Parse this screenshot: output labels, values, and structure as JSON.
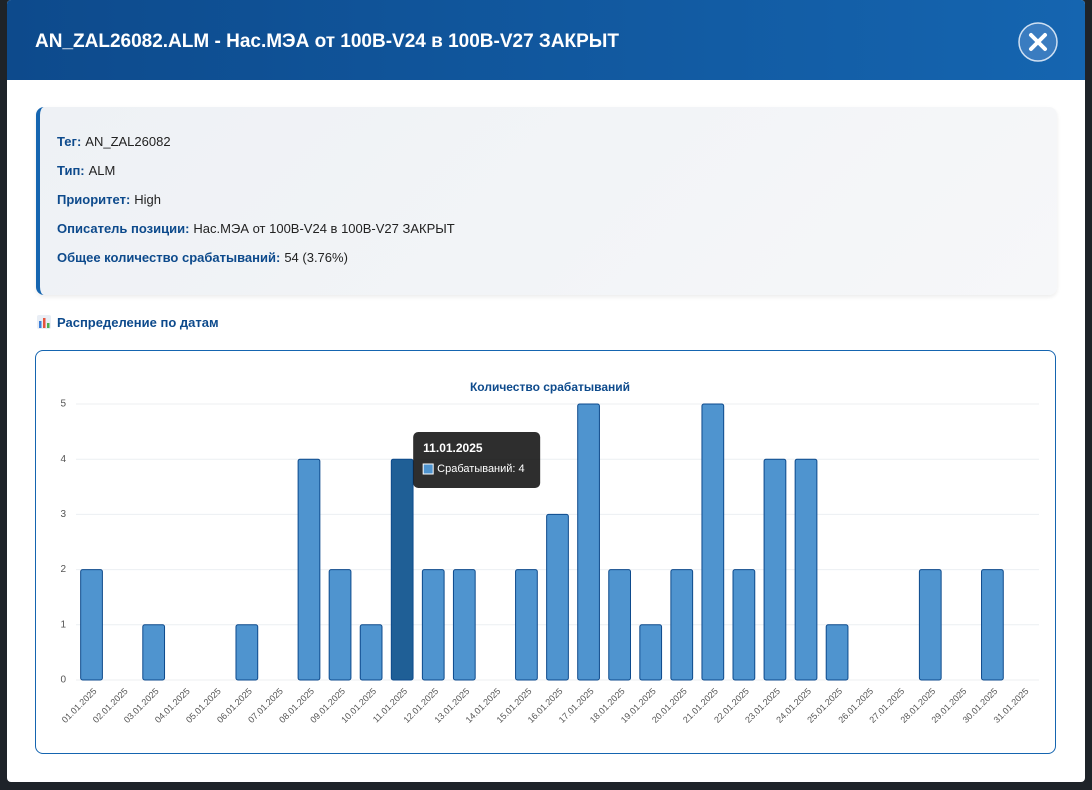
{
  "header": {
    "title": "AN_ZAL26082.ALM - Нас.МЭА от 100В-V24 в 100В-V27 ЗАКРЫТ"
  },
  "info": [
    {
      "label": "Тег:",
      "value": "AN_ZAL26082"
    },
    {
      "label": "Тип:",
      "value": "ALM"
    },
    {
      "label": "Приоритет:",
      "value": "High"
    },
    {
      "label": "Описатель позиции:",
      "value": "Нас.МЭА от 100В-V24 в 100В-V27 ЗАКРЫТ"
    },
    {
      "label": "Общее количество срабатываний:",
      "value": "54 (3.76%)"
    }
  ],
  "section_title": "Распределение по датам",
  "chart_data": {
    "type": "bar",
    "title": "Количество срабатываний",
    "categories": [
      "01.01.2025",
      "02.01.2025",
      "03.01.2025",
      "04.01.2025",
      "05.01.2025",
      "06.01.2025",
      "07.01.2025",
      "08.01.2025",
      "09.01.2025",
      "10.01.2025",
      "11.01.2025",
      "12.01.2025",
      "13.01.2025",
      "14.01.2025",
      "15.01.2025",
      "16.01.2025",
      "17.01.2025",
      "18.01.2025",
      "19.01.2025",
      "20.01.2025",
      "21.01.2025",
      "22.01.2025",
      "23.01.2025",
      "24.01.2025",
      "25.01.2025",
      "26.01.2025",
      "27.01.2025",
      "28.01.2025",
      "29.01.2025",
      "30.01.2025",
      "31.01.2025"
    ],
    "series": [
      {
        "name": "Срабатываний",
        "color": "#4f94cf",
        "values": [
          2,
          0,
          1,
          0,
          0,
          1,
          0,
          4,
          2,
          1,
          4,
          2,
          2,
          0,
          2,
          3,
          5,
          2,
          1,
          2,
          5,
          2,
          4,
          4,
          1,
          0,
          0,
          2,
          0,
          2,
          0
        ]
      }
    ],
    "ylim": [
      0,
      5
    ],
    "yticks": [
      0,
      1,
      2,
      3,
      4,
      5
    ],
    "grid": true,
    "tooltip": {
      "title": "11.01.2025",
      "text": "Срабатываний: 4"
    }
  }
}
